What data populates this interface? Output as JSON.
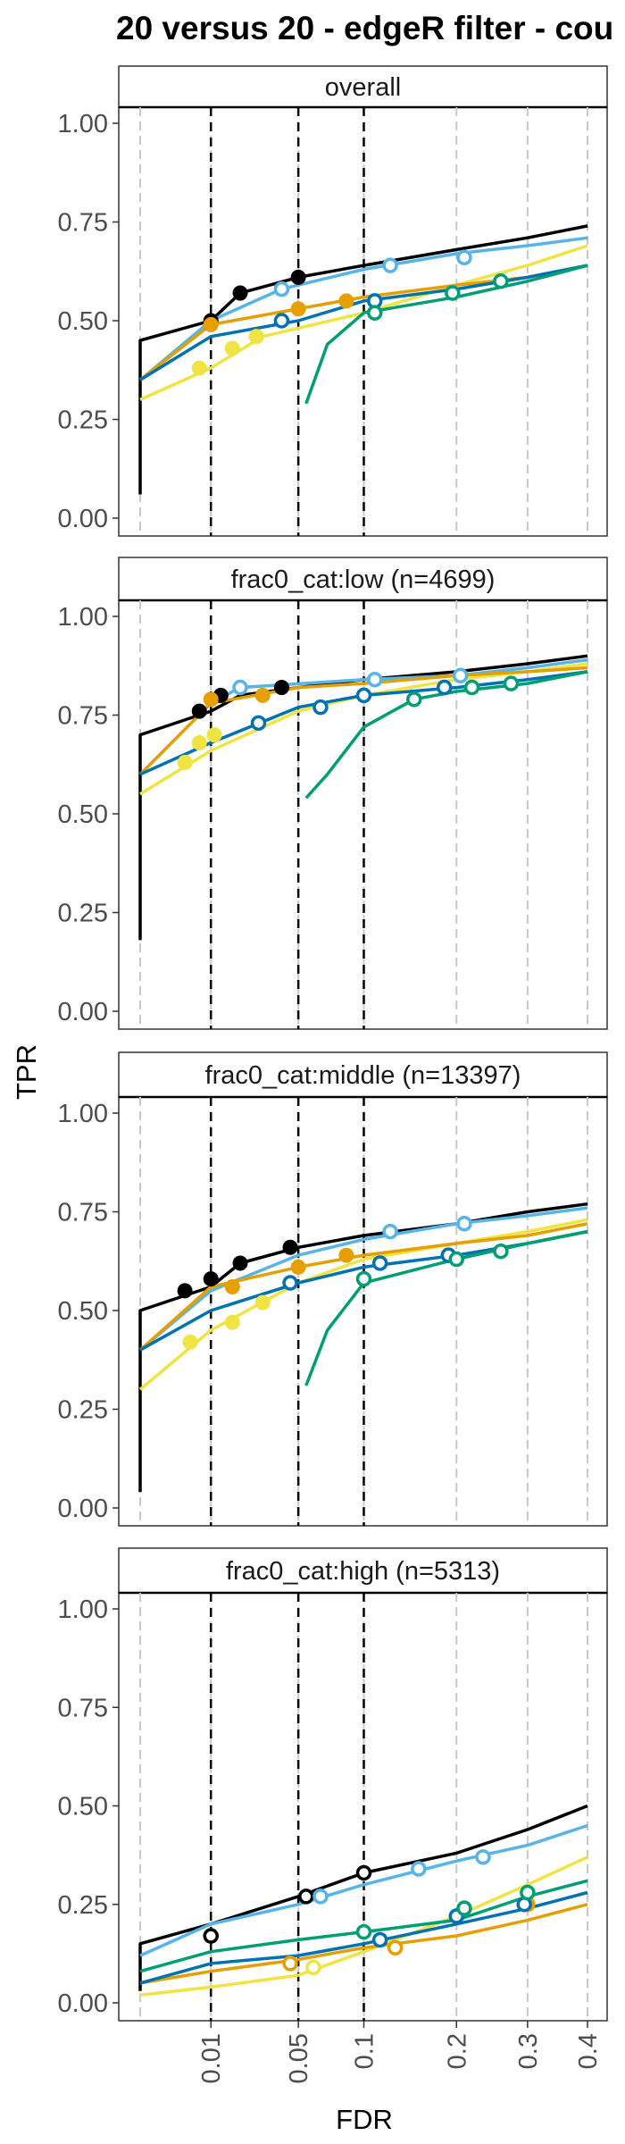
{
  "chart_data": {
    "type": "line",
    "title": "20 versus 20 - edgeR filter - cou",
    "xlabel": "FDR",
    "ylabel": "TPR",
    "x_ticks": [
      "0.01",
      "0.05",
      "0.1",
      "0.2",
      "0.3",
      "0.4"
    ],
    "x_tick_values": [
      0.01,
      0.05,
      0.1,
      0.2,
      0.3,
      0.4
    ],
    "xlim": [
      0.0,
      0.4
    ],
    "y_ticks": [
      "0.00",
      "0.25",
      "0.50",
      "0.75",
      "1.00"
    ],
    "y_tick_values": [
      0,
      0.25,
      0.5,
      0.75,
      1.0
    ],
    "ylim": [
      0,
      1.0
    ],
    "fdr_thresholds": [
      0.01,
      0.05,
      0.1
    ],
    "grid": "vertical dashed gray at x ticks; dashed black at FDR thresholds",
    "colors": {
      "black": "#000000",
      "lightblue": "#56B4E9",
      "yellow": "#F0E442",
      "orange": "#E69F00",
      "darkblue": "#0072B2",
      "green": "#009E73"
    },
    "panels": [
      {
        "strip": "overall",
        "series": [
          {
            "color": "black",
            "x": [
              0.0,
              0.0,
              0.01,
              0.02,
              0.05,
              0.1,
              0.2,
              0.3,
              0.4
            ],
            "y": [
              0.06,
              0.45,
              0.5,
              0.57,
              0.61,
              0.64,
              0.68,
              0.71,
              0.74
            ],
            "points": [
              [
                0.01,
                0.5
              ],
              [
                0.02,
                0.57
              ],
              [
                0.05,
                0.61
              ]
            ],
            "filled": true
          },
          {
            "color": "lightblue",
            "x": [
              0.0,
              0.01,
              0.04,
              0.1,
              0.2,
              0.3,
              0.4
            ],
            "y": [
              0.35,
              0.5,
              0.58,
              0.63,
              0.67,
              0.69,
              0.71
            ],
            "points": [
              [
                0.04,
                0.58
              ],
              [
                0.125,
                0.64
              ],
              [
                0.21,
                0.66
              ]
            ],
            "filled": false
          },
          {
            "color": "yellow",
            "x": [
              0.0,
              0.01,
              0.03,
              0.1,
              0.2,
              0.3,
              0.4
            ],
            "y": [
              0.3,
              0.38,
              0.46,
              0.52,
              0.59,
              0.64,
              0.69
            ],
            "points": [
              [
                0.007,
                0.38
              ],
              [
                0.017,
                0.43
              ],
              [
                0.027,
                0.46
              ]
            ],
            "filled": true
          },
          {
            "color": "orange",
            "x": [
              0.0,
              0.01,
              0.05,
              0.1,
              0.2,
              0.3,
              0.4
            ],
            "y": [
              0.35,
              0.49,
              0.53,
              0.56,
              0.59,
              0.61,
              0.64
            ],
            "points": [
              [
                0.01,
                0.49
              ],
              [
                0.05,
                0.53
              ],
              [
                0.085,
                0.55
              ]
            ],
            "filled": true
          },
          {
            "color": "darkblue",
            "x": [
              0.0,
              0.01,
              0.05,
              0.1,
              0.2,
              0.3,
              0.4
            ],
            "y": [
              0.35,
              0.46,
              0.5,
              0.55,
              0.58,
              0.61,
              0.64
            ],
            "points": [
              [
                0.04,
                0.5
              ],
              [
                0.11,
                0.55
              ]
            ],
            "filled": false
          },
          {
            "color": "green",
            "x": [
              0.055,
              0.07,
              0.1,
              0.2,
              0.3,
              0.4
            ],
            "y": [
              0.29,
              0.44,
              0.52,
              0.56,
              0.6,
              0.64
            ],
            "points": [
              [
                0.11,
                0.52
              ],
              [
                0.195,
                0.57
              ],
              [
                0.26,
                0.6
              ]
            ],
            "filled": false
          }
        ]
      },
      {
        "strip": "frac0_cat:low (n=4699)",
        "series": [
          {
            "color": "black",
            "x": [
              0.0,
              0.0,
              0.01,
              0.02,
              0.05,
              0.1,
              0.2,
              0.3,
              0.4
            ],
            "y": [
              0.18,
              0.7,
              0.76,
              0.8,
              0.82,
              0.84,
              0.86,
              0.88,
              0.9
            ],
            "points": [
              [
                0.007,
                0.76
              ],
              [
                0.013,
                0.8
              ],
              [
                0.04,
                0.82
              ]
            ],
            "filled": true
          },
          {
            "color": "lightblue",
            "x": [
              0.0,
              0.01,
              0.02,
              0.1,
              0.2,
              0.3,
              0.4
            ],
            "y": [
              0.6,
              0.78,
              0.82,
              0.84,
              0.85,
              0.87,
              0.89
            ],
            "points": [
              [
                0.02,
                0.82
              ],
              [
                0.11,
                0.84
              ],
              [
                0.205,
                0.85
              ]
            ],
            "filled": false
          },
          {
            "color": "yellow",
            "x": [
              0.0,
              0.01,
              0.05,
              0.1,
              0.2,
              0.3,
              0.4
            ],
            "y": [
              0.55,
              0.66,
              0.76,
              0.8,
              0.84,
              0.86,
              0.88
            ],
            "points": [
              [
                0.004,
                0.63
              ],
              [
                0.007,
                0.68
              ],
              [
                0.011,
                0.7
              ]
            ],
            "filled": true
          },
          {
            "color": "orange",
            "x": [
              0.0,
              0.01,
              0.05,
              0.1,
              0.2,
              0.3,
              0.4
            ],
            "y": [
              0.6,
              0.78,
              0.82,
              0.83,
              0.85,
              0.86,
              0.87
            ],
            "points": [
              [
                0.01,
                0.79
              ],
              [
                0.03,
                0.8
              ]
            ],
            "filled": true
          },
          {
            "color": "darkblue",
            "x": [
              0.0,
              0.01,
              0.05,
              0.1,
              0.2,
              0.3,
              0.4
            ],
            "y": [
              0.6,
              0.68,
              0.77,
              0.8,
              0.82,
              0.84,
              0.86
            ],
            "points": [
              [
                0.028,
                0.73
              ],
              [
                0.065,
                0.77
              ],
              [
                0.1,
                0.8
              ],
              [
                0.185,
                0.82
              ]
            ],
            "filled": false
          },
          {
            "color": "green",
            "x": [
              0.055,
              0.07,
              0.1,
              0.15,
              0.2,
              0.3,
              0.4
            ],
            "y": [
              0.54,
              0.6,
              0.72,
              0.79,
              0.81,
              0.83,
              0.86
            ],
            "points": [
              [
                0.15,
                0.79
              ],
              [
                0.22,
                0.82
              ],
              [
                0.275,
                0.83
              ]
            ],
            "filled": false
          }
        ]
      },
      {
        "strip": "frac0_cat:middle (n=13397)",
        "series": [
          {
            "color": "black",
            "x": [
              0.0,
              0.0,
              0.01,
              0.02,
              0.05,
              0.1,
              0.2,
              0.3,
              0.4
            ],
            "y": [
              0.04,
              0.5,
              0.56,
              0.62,
              0.66,
              0.69,
              0.72,
              0.75,
              0.77
            ],
            "points": [
              [
                0.004,
                0.55
              ],
              [
                0.01,
                0.58
              ],
              [
                0.02,
                0.62
              ],
              [
                0.045,
                0.66
              ]
            ],
            "filled": true
          },
          {
            "color": "lightblue",
            "x": [
              0.0,
              0.01,
              0.05,
              0.1,
              0.2,
              0.3,
              0.4
            ],
            "y": [
              0.4,
              0.55,
              0.64,
              0.68,
              0.72,
              0.74,
              0.76
            ],
            "points": [
              [
                0.125,
                0.7
              ],
              [
                0.21,
                0.72
              ]
            ],
            "filled": false
          },
          {
            "color": "yellow",
            "x": [
              0.0,
              0.01,
              0.05,
              0.1,
              0.2,
              0.3,
              0.4
            ],
            "y": [
              0.3,
              0.45,
              0.57,
              0.63,
              0.67,
              0.7,
              0.73
            ],
            "points": [
              [
                0.005,
                0.42
              ],
              [
                0.017,
                0.47
              ],
              [
                0.03,
                0.52
              ]
            ],
            "filled": true
          },
          {
            "color": "orange",
            "x": [
              0.0,
              0.01,
              0.05,
              0.1,
              0.2,
              0.3,
              0.4
            ],
            "y": [
              0.4,
              0.56,
              0.61,
              0.64,
              0.67,
              0.69,
              0.72
            ],
            "points": [
              [
                0.017,
                0.56
              ],
              [
                0.05,
                0.61
              ],
              [
                0.085,
                0.64
              ]
            ],
            "filled": true
          },
          {
            "color": "darkblue",
            "x": [
              0.0,
              0.01,
              0.05,
              0.1,
              0.2,
              0.3,
              0.4
            ],
            "y": [
              0.4,
              0.5,
              0.57,
              0.61,
              0.64,
              0.67,
              0.7
            ],
            "points": [
              [
                0.045,
                0.57
              ],
              [
                0.115,
                0.62
              ],
              [
                0.19,
                0.64
              ]
            ],
            "filled": false
          },
          {
            "color": "green",
            "x": [
              0.055,
              0.07,
              0.1,
              0.2,
              0.3,
              0.4
            ],
            "y": [
              0.31,
              0.45,
              0.57,
              0.63,
              0.67,
              0.7
            ],
            "points": [
              [
                0.1,
                0.58
              ],
              [
                0.2,
                0.63
              ],
              [
                0.26,
                0.65
              ]
            ],
            "filled": false
          }
        ]
      },
      {
        "strip": "frac0_cat:high (n=5313)",
        "series": [
          {
            "color": "black",
            "x": [
              0.0,
              0.0,
              0.01,
              0.05,
              0.1,
              0.2,
              0.3,
              0.4
            ],
            "y": [
              0.03,
              0.15,
              0.2,
              0.27,
              0.33,
              0.38,
              0.44,
              0.5
            ],
            "points": [
              [
                0.01,
                0.17
              ],
              [
                0.055,
                0.27
              ],
              [
                0.1,
                0.33
              ]
            ],
            "filled": false
          },
          {
            "color": "lightblue",
            "x": [
              0.0,
              0.01,
              0.05,
              0.1,
              0.2,
              0.3,
              0.4
            ],
            "y": [
              0.12,
              0.2,
              0.25,
              0.3,
              0.36,
              0.4,
              0.45
            ],
            "points": [
              [
                0.065,
                0.27
              ],
              [
                0.155,
                0.34
              ],
              [
                0.235,
                0.37
              ]
            ],
            "filled": false
          },
          {
            "color": "yellow",
            "x": [
              0.0,
              0.01,
              0.05,
              0.1,
              0.2,
              0.3,
              0.4
            ],
            "y": [
              0.02,
              0.04,
              0.07,
              0.13,
              0.22,
              0.3,
              0.37
            ],
            "points": [
              [
                0.06,
                0.09
              ]
            ],
            "filled": false
          },
          {
            "color": "orange",
            "x": [
              0.0,
              0.01,
              0.05,
              0.1,
              0.2,
              0.3,
              0.4
            ],
            "y": [
              0.05,
              0.08,
              0.11,
              0.14,
              0.17,
              0.21,
              0.25
            ],
            "points": [
              [
                0.045,
                0.1
              ],
              [
                0.13,
                0.14
              ],
              [
                0.3,
                0.25
              ]
            ],
            "filled": false
          },
          {
            "color": "darkblue",
            "x": [
              0.0,
              0.01,
              0.05,
              0.1,
              0.2,
              0.3,
              0.4
            ],
            "y": [
              0.05,
              0.1,
              0.12,
              0.15,
              0.2,
              0.24,
              0.28
            ],
            "points": [
              [
                0.115,
                0.16
              ],
              [
                0.2,
                0.22
              ],
              [
                0.295,
                0.25
              ]
            ],
            "filled": false
          },
          {
            "color": "green",
            "x": [
              0.0,
              0.01,
              0.05,
              0.1,
              0.2,
              0.3,
              0.4
            ],
            "y": [
              0.08,
              0.13,
              0.16,
              0.18,
              0.21,
              0.27,
              0.31
            ],
            "points": [
              [
                0.1,
                0.18
              ],
              [
                0.21,
                0.24
              ],
              [
                0.3,
                0.28
              ]
            ],
            "filled": false
          }
        ]
      }
    ]
  }
}
